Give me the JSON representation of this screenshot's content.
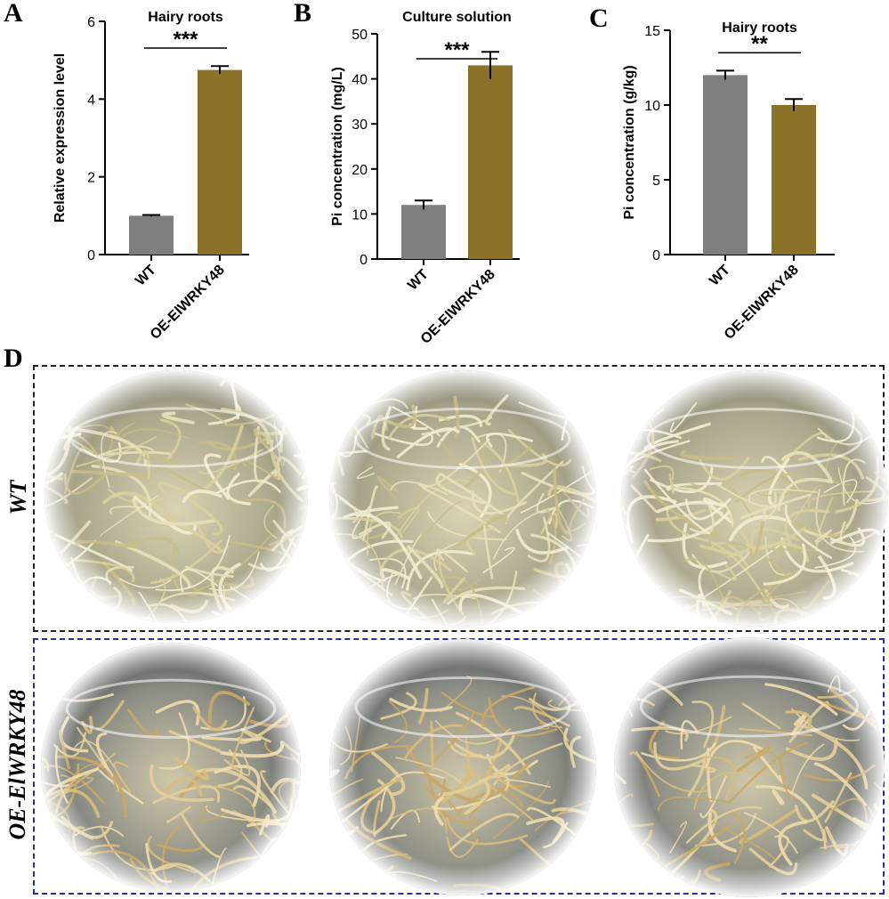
{
  "panels": {
    "a": "A",
    "b": "B",
    "c": "C",
    "d": "D"
  },
  "colors": {
    "wt_bar": "#7f7f7f",
    "oe_bar": "#8b7228",
    "wt_frame": "#222222",
    "oe_frame": "#1f2fb0"
  },
  "photos": {
    "wt_row_label": "WT",
    "oe_row_label": "OE-ElWRKY48"
  },
  "chart_data": [
    {
      "type": "bar",
      "title": "Hairy roots",
      "ylabel": "Relative expression level",
      "xlabel": "",
      "categories": [
        "WT",
        "OE-ElWRKY48"
      ],
      "values": [
        1.0,
        4.75
      ],
      "errors": [
        0.02,
        0.1
      ],
      "ylim": [
        0,
        6
      ],
      "yticks": [
        0,
        2,
        4,
        6
      ],
      "significance": "***"
    },
    {
      "type": "bar",
      "title": "Culture solution",
      "ylabel": "Pi concentration (mg/L)",
      "xlabel": "",
      "categories": [
        "WT",
        "OE-ElWRKY48"
      ],
      "values": [
        12.0,
        43.0
      ],
      "errors": [
        1.0,
        3.0
      ],
      "ylim": [
        0,
        50
      ],
      "yticks": [
        0,
        10,
        20,
        30,
        40,
        50
      ],
      "significance": "***"
    },
    {
      "type": "bar",
      "title": "Hairy roots",
      "ylabel": "Pi concentration (g/kg)",
      "xlabel": "",
      "categories": [
        "WT",
        "OE-ElWRKY48"
      ],
      "values": [
        12.0,
        10.0
      ],
      "errors": [
        0.3,
        0.4
      ],
      "ylim": [
        0,
        15
      ],
      "yticks": [
        0,
        5,
        10,
        15
      ],
      "significance": "**"
    }
  ]
}
